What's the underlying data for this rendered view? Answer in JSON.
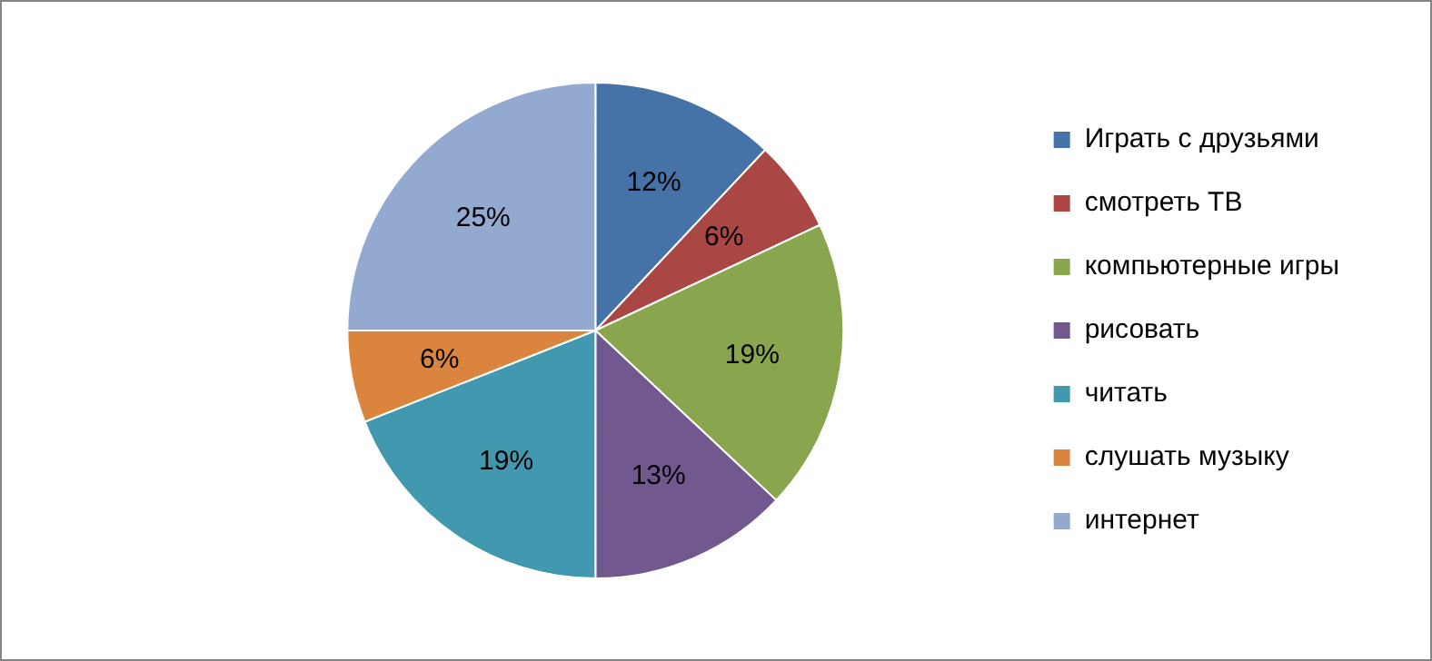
{
  "chart_data": {
    "type": "pie",
    "categories": [
      "Играть с друзьями",
      "смотреть ТВ",
      "компьютерные игры",
      "рисовать",
      "читать",
      "слушать музыку",
      "интернет"
    ],
    "values": [
      12,
      6,
      19,
      13,
      19,
      6,
      25
    ],
    "colors": [
      "#4572a7",
      "#aa4643",
      "#89a54e",
      "#71588f",
      "#4198af",
      "#db843d",
      "#93a9cf"
    ],
    "value_labels": [
      "12%",
      "6%",
      "19%",
      "13%",
      "19%",
      "6%",
      "25%"
    ],
    "legend": "right"
  }
}
